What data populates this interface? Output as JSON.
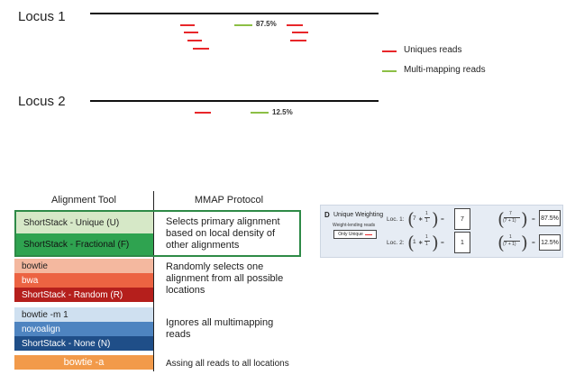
{
  "locus1": {
    "label": "Locus 1",
    "percent": "87.5%"
  },
  "locus2": {
    "label": "Locus 2",
    "percent": "12.5%"
  },
  "legend": {
    "unique": "Uniques reads",
    "multi": "Multi-mapping reads"
  },
  "colors": {
    "unique_read": "#e8262a",
    "multi_read": "#8cbf45",
    "green_border": "#2e8a47",
    "unique_u": "#d6e8c7",
    "fractional_f": "#2fa350",
    "bowtie": "#f4b89f",
    "bwa": "#ec6342",
    "random_r": "#b51f1c",
    "bowtie_m1": "#cfe0f0",
    "novoalign": "#4e84c0",
    "none_n": "#1f4e88",
    "bowtie_a": "#f29a4a"
  },
  "table": {
    "header_tool": "Alignment Tool",
    "header_protocol": "MMAP Protocol",
    "groups": [
      {
        "tools": [
          "ShortStack - Unique (U)",
          "ShortStack - Fractional (F)"
        ],
        "protocol": "Selects primary alignment based on local density of other alignments"
      },
      {
        "tools": [
          "bowtie",
          "bwa",
          "ShortStack - Random (R)"
        ],
        "protocol": "Randomly selects one alignment from all possible locations"
      },
      {
        "tools": [
          "bowtie -m 1",
          "novoalign",
          "ShortStack - None (N)"
        ],
        "protocol": "Ignores all multimapping reads"
      },
      {
        "tools": [
          "bowtie -a"
        ],
        "protocol": "Assing all reads to all locations"
      }
    ]
  },
  "panel_d": {
    "letter": "D",
    "title": "Unique Weighting",
    "subtitle": "Weight-lending reads",
    "badge": "Only Unique",
    "loc1": {
      "label": "Loc. 1:",
      "count": "7",
      "numerator": "7",
      "denominator": "(7 + 1)",
      "result": "87.5%"
    },
    "loc2": {
      "label": "Loc. 2:",
      "count": "1",
      "numerator": "1",
      "denominator": "(7 + 1)",
      "result": "12.5%"
    }
  }
}
